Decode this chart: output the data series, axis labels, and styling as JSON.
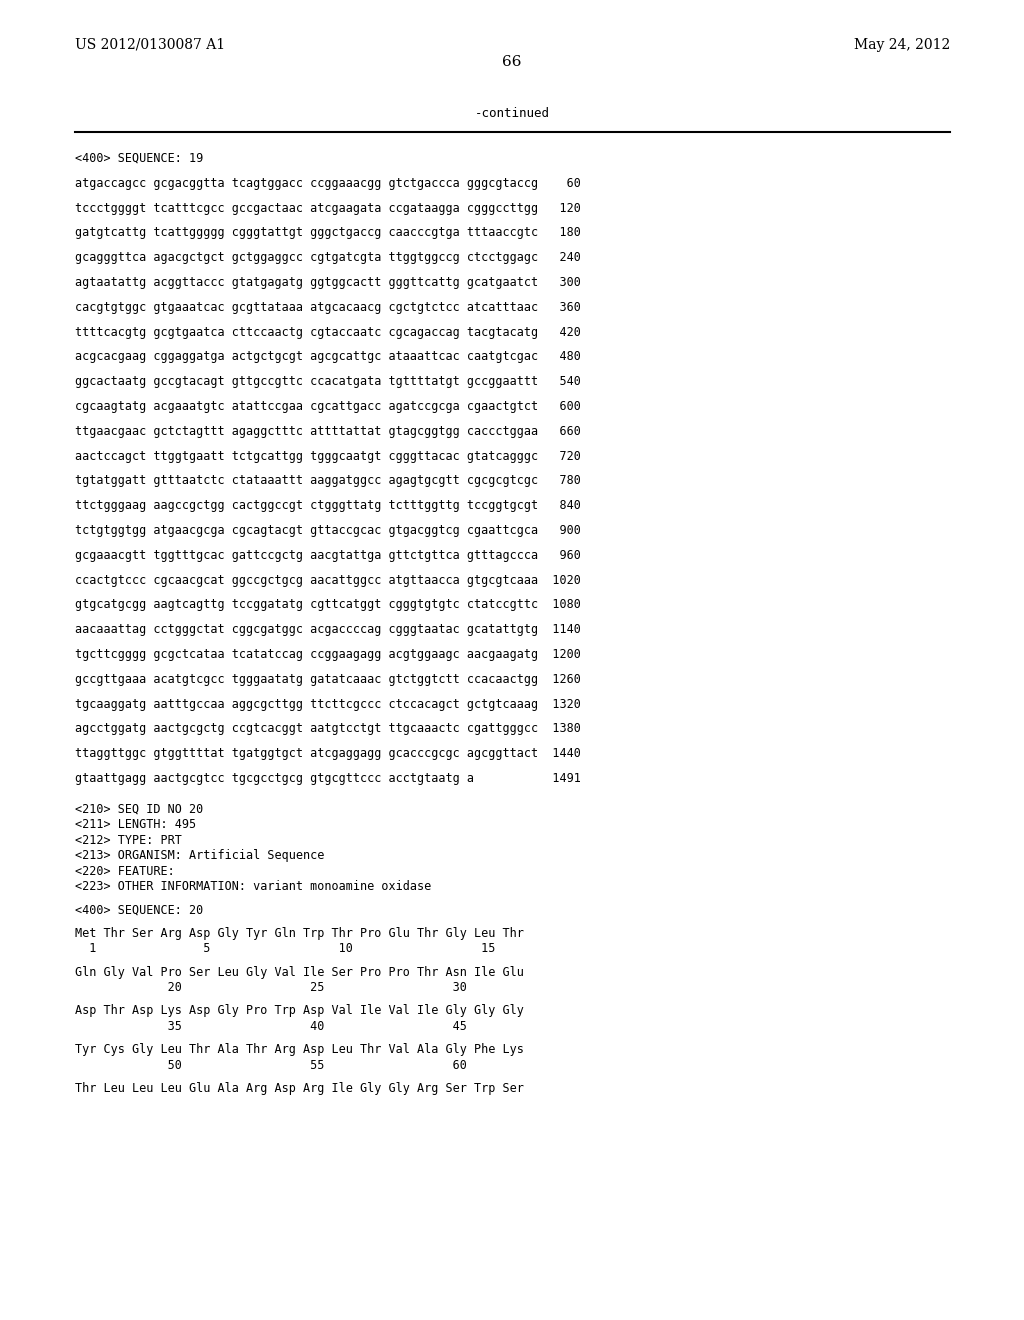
{
  "header_left": "US 2012/0130087 A1",
  "header_right": "May 24, 2012",
  "page_number": "66",
  "continued_text": "-continued",
  "background_color": "#ffffff",
  "text_color": "#000000",
  "seq_lines": [
    "<400> SEQUENCE: 19",
    "",
    "atgaccagcc gcgacggtta tcagtggacc ccggaaacgg gtctgaccca gggcgtaccg    60",
    "",
    "tccctggggt tcatttcgcc gccgactaac atcgaagata ccgataagga cgggccttgg   120",
    "",
    "gatgtcattg tcattggggg cgggtattgt gggctgaccg caacccgtga tttaaccgtc   180",
    "",
    "gcagggttca agacgctgct gctggaggcc cgtgatcgta ttggtggccg ctcctggagc   240",
    "",
    "agtaatattg acggttaccc gtatgagatg ggtggcactt gggttcattg gcatgaatct   300",
    "",
    "cacgtgtggc gtgaaatcac gcgttataaa atgcacaacg cgctgtctcc atcatttaac   360",
    "",
    "ttttcacgtg gcgtgaatca cttccaactg cgtaccaatc cgcagaccag tacgtacatg   420",
    "",
    "acgcacgaag cggaggatga actgctgcgt agcgcattgc ataaattcac caatgtcgac   480",
    "",
    "ggcactaatg gccgtacagt gttgccgttc ccacatgata tgttttatgt gccggaattt   540",
    "",
    "cgcaagtatg acgaaatgtc atattccgaa cgcattgacc agatccgcga cgaactgtct   600",
    "",
    "ttgaacgaac gctctagttt agaggctttc attttattat gtagcggtgg caccctggaa   660",
    "",
    "aactccagct ttggtgaatt tctgcattgg tgggcaatgt cgggttacac gtatcagggc   720",
    "",
    "tgtatggatt gtttaatctc ctataaattt aaggatggcc agagtgcgtt cgcgcgtcgc   780",
    "",
    "ttctgggaag aagccgctgg cactggccgt ctgggttatg tctttggttg tccggtgcgt   840",
    "",
    "tctgtggtgg atgaacgcga cgcagtacgt gttaccgcac gtgacggtcg cgaattcgca   900",
    "",
    "gcgaaacgtt tggtttgcac gattccgctg aacgtattga gttctgttca gtttagccca   960",
    "",
    "ccactgtccc cgcaacgcat ggccgctgcg aacattggcc atgttaacca gtgcgtcaaa  1020",
    "",
    "gtgcatgcgg aagtcagttg tccggatatg cgttcatggt cgggtgtgtc ctatccgttc  1080",
    "",
    "aacaaattag cctgggctat cggcgatggc acgaccccag cgggtaatac gcatattgtg  1140",
    "",
    "tgcttcgggg gcgctcataa tcatatccag ccggaagagg acgtggaagc aacgaagatg  1200",
    "",
    "gccgttgaaa acatgtcgcc tgggaatatg gatatcaaac gtctggtctt ccacaactgg  1260",
    "",
    "tgcaaggatg aatttgccaa aggcgcttgg ttcttcgccc ctccacagct gctgtcaaag  1320",
    "",
    "agcctggatg aactgcgctg ccgtcacggt aatgtcctgt ttgcaaactc cgattgggcc  1380",
    "",
    "ttaggttggc gtggttttat tgatggtgct atcgaggagg gcacccgcgc agcggttact  1440",
    "",
    "gtaattgagg aactgcgtcc tgcgcctgcg gtgcgttccc acctgtaatg a           1491"
  ],
  "meta_lines": [
    "",
    "",
    "<210> SEQ ID NO 20",
    "<211> LENGTH: 495",
    "<212> TYPE: PRT",
    "<213> ORGANISM: Artificial Sequence",
    "<220> FEATURE:",
    "<223> OTHER INFORMATION: variant monoamine oxidase",
    "",
    "<400> SEQUENCE: 20",
    "",
    "Met Thr Ser Arg Asp Gly Tyr Gln Trp Thr Pro Glu Thr Gly Leu Thr",
    "  1               5                  10                  15",
    "",
    "Gln Gly Val Pro Ser Leu Gly Val Ile Ser Pro Pro Thr Asn Ile Glu",
    "             20                  25                  30",
    "",
    "Asp Thr Asp Lys Asp Gly Pro Trp Asp Val Ile Val Ile Gly Gly Gly",
    "             35                  40                  45",
    "",
    "Tyr Cys Gly Leu Thr Ala Thr Arg Asp Leu Thr Val Ala Gly Phe Lys",
    "             50                  55                  60",
    "",
    "Thr Leu Leu Leu Glu Ala Arg Asp Arg Ile Gly Gly Arg Ser Trp Ser"
  ]
}
